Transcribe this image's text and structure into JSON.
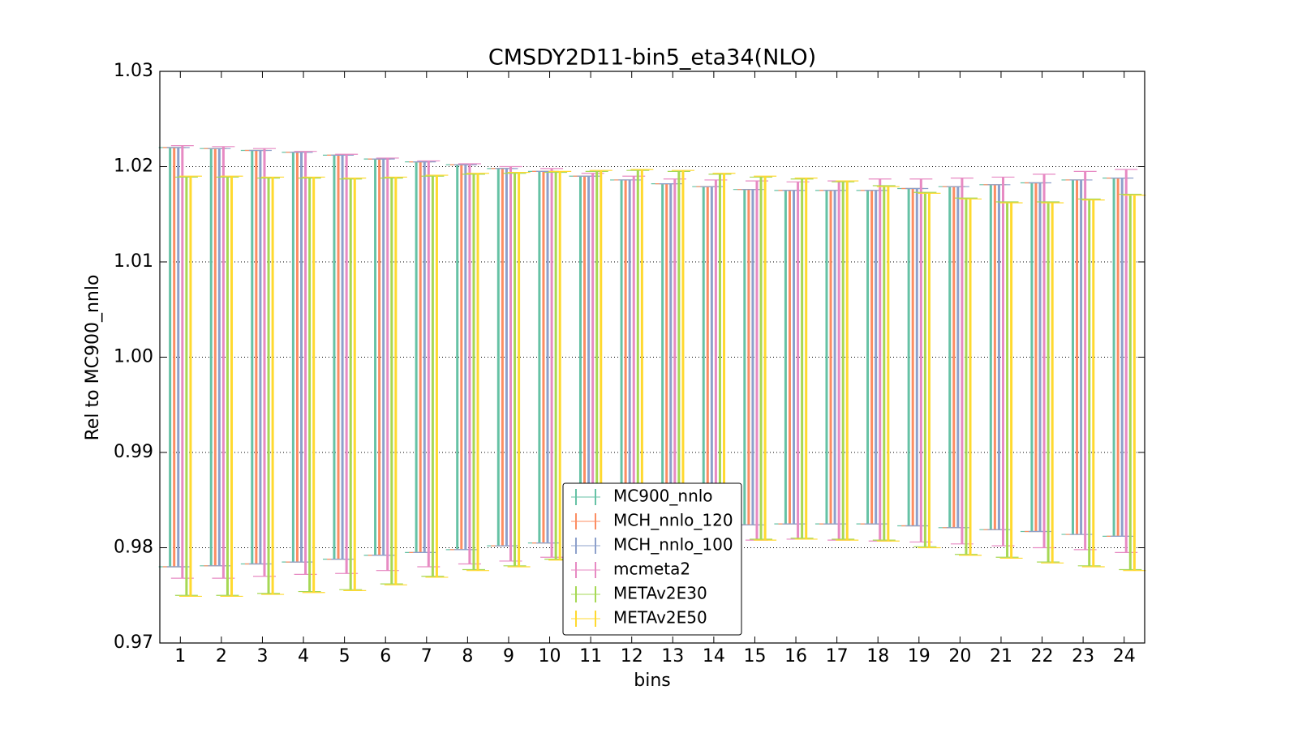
{
  "chart_data": {
    "type": "errorbar",
    "title": "CMSDY2D11-bin5_eta34(NLO)",
    "xlabel": "bins",
    "ylabel": "Rel to MC900_nnlo",
    "xlim": [
      0.5,
      24.5
    ],
    "xticks": [
      1,
      2,
      3,
      4,
      5,
      6,
      7,
      8,
      9,
      10,
      11,
      12,
      13,
      14,
      15,
      16,
      17,
      18,
      19,
      20,
      21,
      22,
      23,
      24
    ],
    "ylim": [
      0.97,
      1.03
    ],
    "yticks": [
      0.97,
      0.98,
      0.99,
      {
        "value": 1.0,
        "label": "1.00"
      },
      1.01,
      1.02,
      1.03
    ],
    "grid": true,
    "legend": "lower center",
    "x": [
      1,
      2,
      3,
      4,
      5,
      6,
      7,
      8,
      9,
      10,
      11,
      12,
      13,
      14,
      15,
      16,
      17,
      18,
      19,
      20,
      21,
      22,
      23,
      24
    ],
    "series": [
      {
        "name": "MC900_nnlo",
        "color": "#66c2a5",
        "high": [
          1.022,
          1.0219,
          1.0217,
          1.0215,
          1.0212,
          1.0208,
          1.0205,
          1.0202,
          1.0198,
          1.0195,
          1.019,
          1.0186,
          1.0182,
          1.0179,
          1.0176,
          1.0175,
          1.0175,
          1.0175,
          1.0177,
          1.0179,
          1.0181,
          1.0183,
          1.0186,
          1.0188
        ],
        "low": [
          0.978,
          0.9781,
          0.9783,
          0.9785,
          0.9788,
          0.9792,
          0.9795,
          0.9798,
          0.9802,
          0.9805,
          0.981,
          0.9814,
          0.9818,
          0.9821,
          0.9824,
          0.9825,
          0.9825,
          0.9825,
          0.9823,
          0.9821,
          0.9819,
          0.9817,
          0.9814,
          0.9812
        ]
      },
      {
        "name": "MCH_nnlo_120",
        "color": "#fc8d62",
        "high": [
          1.022,
          1.0219,
          1.0217,
          1.0215,
          1.0212,
          1.0208,
          1.0205,
          1.0202,
          1.0198,
          1.0195,
          1.019,
          1.0186,
          1.0182,
          1.0179,
          1.0176,
          1.0175,
          1.0175,
          1.0175,
          1.0177,
          1.0179,
          1.0181,
          1.0183,
          1.0186,
          1.0188
        ],
        "low": [
          0.978,
          0.9781,
          0.9783,
          0.9785,
          0.9788,
          0.9792,
          0.9795,
          0.9798,
          0.9802,
          0.9805,
          0.981,
          0.9814,
          0.9818,
          0.9821,
          0.9824,
          0.9825,
          0.9825,
          0.9825,
          0.9823,
          0.9821,
          0.9819,
          0.9817,
          0.9814,
          0.9812
        ]
      },
      {
        "name": "MCH_nnlo_100",
        "color": "#8da0cb",
        "high": [
          1.022,
          1.0219,
          1.0217,
          1.0215,
          1.0212,
          1.0208,
          1.0205,
          1.0202,
          1.0198,
          1.0195,
          1.019,
          1.0186,
          1.0182,
          1.0179,
          1.0176,
          1.0175,
          1.0175,
          1.0175,
          1.0177,
          1.0179,
          1.0181,
          1.0183,
          1.0186,
          1.0188
        ],
        "low": [
          0.978,
          0.9781,
          0.9783,
          0.9785,
          0.9788,
          0.9792,
          0.9795,
          0.9798,
          0.9802,
          0.9805,
          0.981,
          0.9814,
          0.9818,
          0.9821,
          0.9824,
          0.9825,
          0.9825,
          0.9825,
          0.9823,
          0.9821,
          0.9819,
          0.9817,
          0.9814,
          0.9812
        ]
      },
      {
        "name": "mcmeta2",
        "color": "#e78ac3",
        "high": [
          1.0222,
          1.0221,
          1.0219,
          1.0216,
          1.0213,
          1.0209,
          1.0206,
          1.0203,
          1.02,
          1.0198,
          1.0193,
          1.019,
          1.0187,
          1.0186,
          1.0185,
          1.0184,
          1.0185,
          1.0187,
          1.0187,
          1.0188,
          1.0189,
          1.0192,
          1.0195,
          1.0197
        ],
        "low": [
          0.9768,
          0.9768,
          0.977,
          0.9772,
          0.9773,
          0.9776,
          0.978,
          0.9783,
          0.9786,
          0.979,
          0.9795,
          0.9799,
          0.9803,
          0.9806,
          0.9808,
          0.9809,
          0.9808,
          0.9807,
          0.9806,
          0.9804,
          0.9802,
          0.98,
          0.9798,
          0.9795
        ]
      },
      {
        "name": "METAv2E30",
        "color": "#a6d854",
        "high": [
          1.0189,
          1.0189,
          1.0188,
          1.0188,
          1.0187,
          1.0188,
          1.019,
          1.0192,
          1.0193,
          1.0194,
          1.0195,
          1.0196,
          1.0195,
          1.0192,
          1.0189,
          1.0187,
          1.0184,
          1.018,
          1.0173,
          1.0167,
          1.0163,
          1.0163,
          1.0166,
          1.0171
        ],
        "low": [
          0.975,
          0.975,
          0.9752,
          0.9754,
          0.9756,
          0.9762,
          0.977,
          0.9777,
          0.9781,
          0.9788,
          0.9795,
          0.98,
          0.9805,
          0.9808,
          0.9809,
          0.981,
          0.9809,
          0.9808,
          0.9801,
          0.9793,
          0.979,
          0.9785,
          0.9781,
          0.9777
        ]
      },
      {
        "name": "METAv2E50",
        "color": "#ffd92f",
        "high": [
          1.019,
          1.019,
          1.0189,
          1.0189,
          1.0188,
          1.0189,
          1.0191,
          1.0193,
          1.0194,
          1.0195,
          1.0196,
          1.0197,
          1.0196,
          1.0193,
          1.019,
          1.0188,
          1.0185,
          1.0179,
          1.0172,
          1.0166,
          1.0162,
          1.0162,
          1.0165,
          1.017
        ],
        "low": [
          0.9749,
          0.9749,
          0.9751,
          0.9753,
          0.9755,
          0.9761,
          0.9769,
          0.9776,
          0.978,
          0.9787,
          0.9794,
          0.9799,
          0.9804,
          0.9807,
          0.9808,
          0.9809,
          0.9808,
          0.9807,
          0.98,
          0.9792,
          0.9789,
          0.9784,
          0.978,
          0.9776
        ]
      }
    ]
  }
}
